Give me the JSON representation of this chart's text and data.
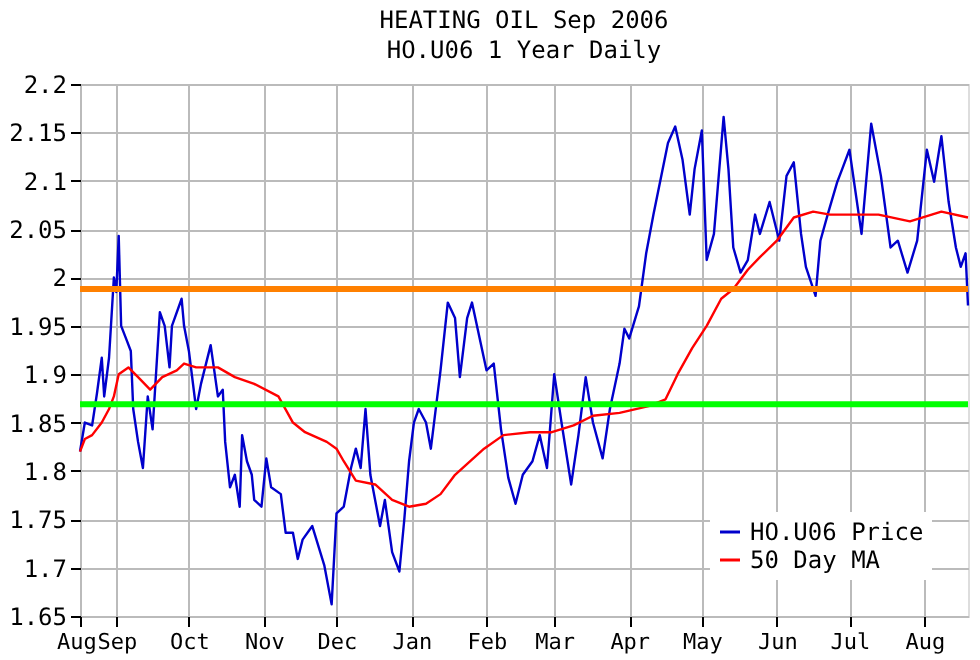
{
  "chart_data": {
    "type": "line",
    "title": "HEATING OIL Sep 2006",
    "subtitle": "HO.U06 1 Year Daily",
    "xlim": [
      "2005-08-17",
      "2006-08-19"
    ],
    "xticks": [
      {
        "value": "2005-08-17",
        "label": "Aug"
      },
      {
        "value": "2005-09-01",
        "label": "Sep"
      },
      {
        "value": "2005-10-01",
        "label": "Oct"
      },
      {
        "value": "2005-11-01",
        "label": "Nov"
      },
      {
        "value": "2005-12-01",
        "label": "Dec"
      },
      {
        "value": "2006-01-01",
        "label": "Jan"
      },
      {
        "value": "2006-02-01",
        "label": "Feb"
      },
      {
        "value": "2006-03-01",
        "label": "Mar"
      },
      {
        "value": "2006-04-01",
        "label": "Apr"
      },
      {
        "value": "2006-05-01",
        "label": "May"
      },
      {
        "value": "2006-06-01",
        "label": "Jun"
      },
      {
        "value": "2006-07-01",
        "label": "Jul"
      },
      {
        "value": "2006-08-01",
        "label": "Aug"
      }
    ],
    "ylim": [
      1.65,
      2.2
    ],
    "yticks": [
      1.65,
      1.7,
      1.75,
      1.8,
      1.85,
      1.9,
      1.95,
      2,
      2.05,
      2.1,
      2.15,
      2.2
    ],
    "grid": true,
    "legend": "bottom right",
    "line_style": "solid",
    "marker": "none",
    "ref_lines": [
      {
        "axis": "y",
        "value": 1.988,
        "color": "#ff8000"
      },
      {
        "axis": "y",
        "value": 1.869,
        "color": "#00ff00"
      }
    ],
    "series": [
      {
        "name": "HO.U06 Price",
        "color": "#0000cc",
        "x": [
          "2005-08-17",
          "2005-08-19",
          "2005-08-22",
          "2005-08-24",
          "2005-08-26",
          "2005-08-27",
          "2005-08-29",
          "2005-08-31",
          "2005-09-01",
          "2005-09-02",
          "2005-09-03",
          "2005-09-05",
          "2005-09-07",
          "2005-09-08",
          "2005-09-10",
          "2005-09-12",
          "2005-09-14",
          "2005-09-16",
          "2005-09-19",
          "2005-09-21",
          "2005-09-23",
          "2005-09-24",
          "2005-09-28",
          "2005-09-29",
          "2005-10-01",
          "2005-10-04",
          "2005-10-06",
          "2005-10-10",
          "2005-10-13",
          "2005-10-15",
          "2005-10-16",
          "2005-10-18",
          "2005-10-20",
          "2005-10-22",
          "2005-10-23",
          "2005-10-25",
          "2005-10-27",
          "2005-10-28",
          "2005-10-31",
          "2005-11-02",
          "2005-11-04",
          "2005-11-08",
          "2005-11-10",
          "2005-11-13",
          "2005-11-15",
          "2005-11-17",
          "2005-11-21",
          "2005-11-26",
          "2005-11-29",
          "2005-12-01",
          "2005-12-04",
          "2005-12-07",
          "2005-12-09",
          "2005-12-11",
          "2005-12-13",
          "2005-12-15",
          "2005-12-19",
          "2005-12-21",
          "2005-12-24",
          "2005-12-27",
          "2005-12-29",
          "2005-12-31",
          "2006-01-02",
          "2006-01-04",
          "2006-01-07",
          "2006-01-09",
          "2006-01-13",
          "2006-01-16",
          "2006-01-19",
          "2006-01-21",
          "2006-01-24",
          "2006-01-26",
          "2006-02-01",
          "2006-02-04",
          "2006-02-07",
          "2006-02-10",
          "2006-02-13",
          "2006-02-16",
          "2006-02-20",
          "2006-02-23",
          "2006-02-26",
          "2006-03-01",
          "2006-03-04",
          "2006-03-08",
          "2006-03-11",
          "2006-03-14",
          "2006-03-17",
          "2006-03-21",
          "2006-03-24",
          "2006-03-28",
          "2006-03-30",
          "2006-04-01",
          "2006-04-05",
          "2006-04-08",
          "2006-04-11",
          "2006-04-17",
          "2006-04-20",
          "2006-04-23",
          "2006-04-26",
          "2006-04-28",
          "2006-05-01",
          "2006-05-03",
          "2006-05-06",
          "2006-05-10",
          "2006-05-12",
          "2006-05-14",
          "2006-05-17",
          "2006-05-20",
          "2006-05-23",
          "2006-05-25",
          "2006-05-29",
          "2006-06-02",
          "2006-06-05",
          "2006-06-08",
          "2006-06-11",
          "2006-06-13",
          "2006-06-17",
          "2006-06-19",
          "2006-06-22",
          "2006-06-26",
          "2006-06-28",
          "2006-07-01",
          "2006-07-06",
          "2006-07-10",
          "2006-07-14",
          "2006-07-18",
          "2006-07-21",
          "2006-07-25",
          "2006-07-29",
          "2006-08-02",
          "2006-08-05",
          "2006-08-08",
          "2006-08-11",
          "2006-08-14",
          "2006-08-16",
          "2006-08-18",
          "2006-08-19"
        ],
        "values": [
          1.82,
          1.85,
          1.847,
          1.88,
          1.917,
          1.877,
          1.917,
          2.0,
          1.985,
          2.043,
          1.95,
          1.937,
          1.924,
          1.864,
          1.83,
          1.803,
          1.877,
          1.843,
          1.964,
          1.95,
          1.907,
          1.95,
          1.978,
          1.95,
          1.924,
          1.864,
          1.89,
          1.93,
          1.877,
          1.884,
          1.83,
          1.783,
          1.796,
          1.763,
          1.837,
          1.81,
          1.796,
          1.77,
          1.763,
          1.813,
          1.783,
          1.776,
          1.736,
          1.736,
          1.709,
          1.729,
          1.743,
          1.702,
          1.662,
          1.756,
          1.763,
          1.803,
          1.823,
          1.803,
          1.864,
          1.796,
          1.743,
          1.77,
          1.716,
          1.696,
          1.749,
          1.81,
          1.85,
          1.864,
          1.85,
          1.823,
          1.904,
          1.974,
          1.958,
          1.897,
          1.958,
          1.974,
          1.904,
          1.911,
          1.843,
          1.793,
          1.766,
          1.796,
          1.81,
          1.837,
          1.803,
          1.9,
          1.85,
          1.786,
          1.837,
          1.897,
          1.85,
          1.813,
          1.864,
          1.911,
          1.947,
          1.937,
          1.97,
          2.025,
          2.065,
          2.139,
          2.156,
          2.122,
          2.065,
          2.112,
          2.152,
          2.018,
          2.045,
          2.166,
          2.112,
          2.031,
          2.005,
          2.018,
          2.065,
          2.045,
          2.078,
          2.038,
          2.105,
          2.119,
          2.045,
          2.011,
          1.981,
          2.038,
          2.065,
          2.099,
          2.112,
          2.132,
          2.045,
          2.159,
          2.105,
          2.031,
          2.038,
          2.005,
          2.038,
          2.132,
          2.099,
          2.146,
          2.078,
          2.031,
          2.011,
          2.025,
          1.971
        ]
      },
      {
        "name": "50 Day MA",
        "color": "#ff0000",
        "x": [
          "2005-08-17",
          "2005-08-19",
          "2005-08-22",
          "2005-08-26",
          "2005-08-29",
          "2005-08-31",
          "2005-09-02",
          "2005-09-06",
          "2005-09-10",
          "2005-09-15",
          "2005-09-20",
          "2005-09-26",
          "2005-09-29",
          "2005-10-04",
          "2005-10-13",
          "2005-10-20",
          "2005-10-28",
          "2005-11-07",
          "2005-11-13",
          "2005-11-18",
          "2005-11-27",
          "2005-12-01",
          "2005-12-04",
          "2005-12-09",
          "2005-12-17",
          "2005-12-24",
          "2005-12-31",
          "2006-01-07",
          "2006-01-13",
          "2006-01-19",
          "2006-01-31",
          "2006-02-08",
          "2006-02-19",
          "2006-02-28",
          "2006-03-09",
          "2006-03-17",
          "2006-03-28",
          "2006-04-09",
          "2006-04-16",
          "2006-04-21",
          "2006-04-27",
          "2006-05-03",
          "2006-05-09",
          "2006-05-14",
          "2006-05-20",
          "2006-05-25",
          "2006-06-01",
          "2006-06-08",
          "2006-06-16",
          "2006-06-23",
          "2006-07-01",
          "2006-07-13",
          "2006-07-26",
          "2006-08-08",
          "2006-08-19"
        ],
        "values": [
          1.82,
          1.833,
          1.837,
          1.85,
          1.864,
          1.877,
          1.9,
          1.907,
          1.897,
          1.884,
          1.897,
          1.904,
          1.911,
          1.907,
          1.907,
          1.897,
          1.89,
          1.877,
          1.85,
          1.84,
          1.83,
          1.823,
          1.81,
          1.79,
          1.786,
          1.77,
          1.763,
          1.766,
          1.776,
          1.796,
          1.823,
          1.837,
          1.84,
          1.84,
          1.847,
          1.857,
          1.86,
          1.867,
          1.874,
          1.9,
          1.927,
          1.95,
          1.978,
          1.988,
          2.008,
          2.021,
          2.038,
          2.062,
          2.068,
          2.065,
          2.065,
          2.065,
          2.058,
          2.068,
          2.062
        ]
      }
    ]
  }
}
